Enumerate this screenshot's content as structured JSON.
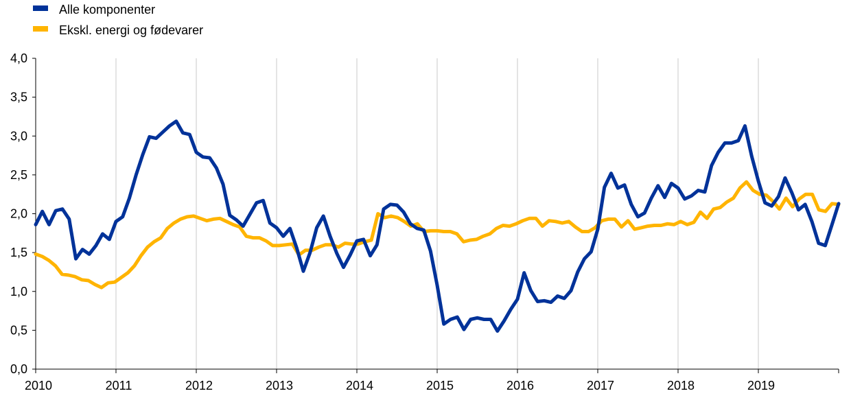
{
  "chart_data": {
    "type": "line",
    "title": "",
    "xlabel": "",
    "ylabel": "",
    "ylim": [
      0,
      4.0
    ],
    "y_ticks": [
      "0,0",
      "0,5",
      "1,0",
      "1,5",
      "2,0",
      "2,5",
      "3,0",
      "3,5",
      "4,0"
    ],
    "x_start": 2010.0,
    "x_end": 2020.0,
    "x_ticks": [
      "2010",
      "2011",
      "2012",
      "2013",
      "2014",
      "2015",
      "2016",
      "2017",
      "2018",
      "2019"
    ],
    "grid": "vertical",
    "legend_position": "top-left",
    "x_step_months": 1,
    "series": [
      {
        "name": "Alle komponenter",
        "color": "#003299",
        "values": [
          1.86,
          2.03,
          1.86,
          2.04,
          2.06,
          1.93,
          1.42,
          1.54,
          1.48,
          1.59,
          1.74,
          1.67,
          1.9,
          1.96,
          2.2,
          2.5,
          2.76,
          2.99,
          2.97,
          3.05,
          3.13,
          3.19,
          3.04,
          3.02,
          2.79,
          2.73,
          2.72,
          2.59,
          2.38,
          1.98,
          1.92,
          1.84,
          1.99,
          2.14,
          2.17,
          1.88,
          1.82,
          1.71,
          1.81,
          1.56,
          1.26,
          1.5,
          1.82,
          1.97,
          1.71,
          1.49,
          1.31,
          1.47,
          1.65,
          1.67,
          1.46,
          1.6,
          2.06,
          2.12,
          2.11,
          2.02,
          1.87,
          1.81,
          1.79,
          1.52,
          1.08,
          0.58,
          0.64,
          0.67,
          0.51,
          0.64,
          0.66,
          0.64,
          0.64,
          0.49,
          0.62,
          0.77,
          0.9,
          1.24,
          1.01,
          0.87,
          0.88,
          0.86,
          0.94,
          0.91,
          1.01,
          1.25,
          1.42,
          1.51,
          1.8,
          2.34,
          2.52,
          2.33,
          2.37,
          2.12,
          1.96,
          2.01,
          2.2,
          2.36,
          2.21,
          2.39,
          2.33,
          2.19,
          2.23,
          2.3,
          2.28,
          2.62,
          2.79,
          2.91,
          2.91,
          2.94,
          3.13,
          2.74,
          2.42,
          2.14,
          2.1,
          2.22,
          2.46,
          2.27,
          2.05,
          2.12,
          1.9,
          1.62,
          1.59,
          1.86,
          2.13
        ]
      },
      {
        "name": "Ekskl. energi og fødevarer",
        "color": "#FFB400",
        "values": [
          1.48,
          1.45,
          1.4,
          1.33,
          1.22,
          1.21,
          1.19,
          1.15,
          1.14,
          1.09,
          1.05,
          1.11,
          1.12,
          1.18,
          1.24,
          1.33,
          1.46,
          1.57,
          1.64,
          1.69,
          1.81,
          1.88,
          1.93,
          1.96,
          1.97,
          1.94,
          1.91,
          1.93,
          1.94,
          1.9,
          1.86,
          1.83,
          1.71,
          1.69,
          1.69,
          1.65,
          1.59,
          1.59,
          1.6,
          1.61,
          1.47,
          1.53,
          1.53,
          1.57,
          1.6,
          1.6,
          1.57,
          1.62,
          1.61,
          1.61,
          1.64,
          1.66,
          2.0,
          1.95,
          1.97,
          1.95,
          1.9,
          1.84,
          1.87,
          1.77,
          1.78,
          1.78,
          1.77,
          1.77,
          1.74,
          1.64,
          1.66,
          1.67,
          1.71,
          1.74,
          1.81,
          1.85,
          1.84,
          1.87,
          1.91,
          1.94,
          1.94,
          1.84,
          1.91,
          1.9,
          1.88,
          1.9,
          1.83,
          1.77,
          1.77,
          1.82,
          1.91,
          1.93,
          1.93,
          1.83,
          1.91,
          1.8,
          1.82,
          1.84,
          1.85,
          1.85,
          1.87,
          1.86,
          1.9,
          1.86,
          1.89,
          2.02,
          1.94,
          2.06,
          2.08,
          2.15,
          2.2,
          2.33,
          2.41,
          2.3,
          2.25,
          2.24,
          2.16,
          2.06,
          2.2,
          2.09,
          2.19,
          2.25,
          2.25,
          2.05,
          2.03,
          2.13,
          2.12
        ]
      }
    ]
  }
}
